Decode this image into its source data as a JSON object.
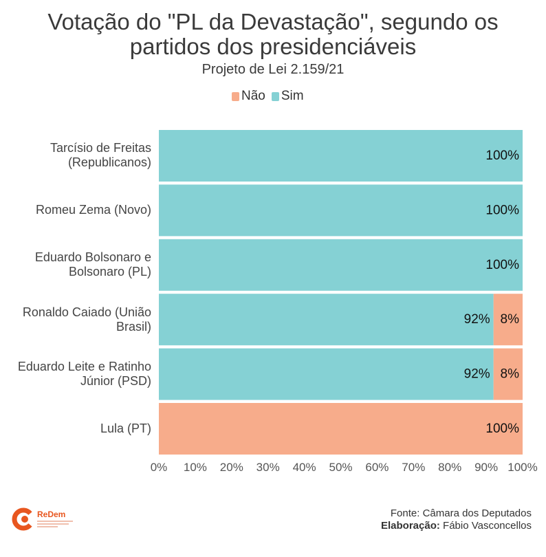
{
  "chart_data": {
    "type": "bar",
    "orientation": "horizontal",
    "stacked": true,
    "title": "Votação do \"PL da Devastação\", segundo os partidos dos presidenciáveis",
    "subtitle": "Projeto de Lei 2.159/21",
    "categories": [
      "Tarcísio de Freitas (Republicanos)",
      "Romeu Zema (Novo)",
      "Eduardo Bolsonaro e Bolsonaro (PL)",
      "Ronaldo Caiado (União Brasil)",
      "Eduardo Leite e Ratinho Júnior (PSD)",
      "Lula (PT)"
    ],
    "series": [
      {
        "name": "Sim",
        "color": "#85D1D4",
        "values": [
          100,
          100,
          100,
          92,
          92,
          0
        ],
        "labels": [
          "100%",
          "100%",
          "100%",
          "92%",
          "92%",
          null
        ]
      },
      {
        "name": "Não",
        "color": "#F7AC8B",
        "values": [
          0,
          0,
          0,
          8,
          8,
          100
        ],
        "labels": [
          null,
          null,
          null,
          "8%",
          "8%",
          "100%"
        ]
      }
    ],
    "xlim": [
      0,
      100
    ],
    "xticks": [
      0,
      10,
      20,
      30,
      40,
      50,
      60,
      70,
      80,
      90,
      100
    ],
    "xtick_labels": [
      "0%",
      "10%",
      "20%",
      "30%",
      "40%",
      "50%",
      "60%",
      "70%",
      "80%",
      "90%",
      "100%"
    ],
    "legend": "top-center",
    "grid": false
  },
  "footer": {
    "source": "Fonte: Câmara dos Deputados",
    "credit_label": "Elaboração:",
    "credit_name": "Fábio Vasconcellos"
  },
  "logo": {
    "text": "ReDem",
    "color": "#E8561F"
  }
}
